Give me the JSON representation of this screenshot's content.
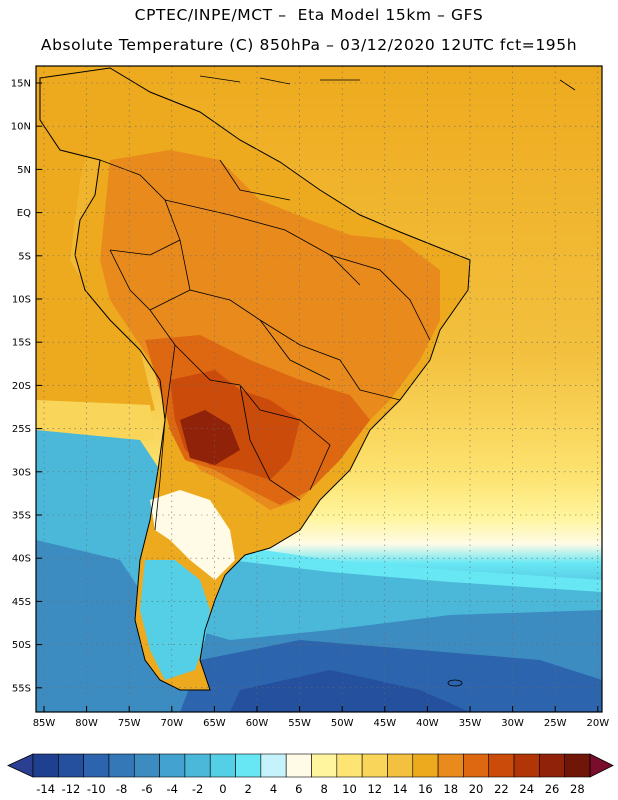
{
  "title": {
    "line1": "CPTEC/INPE/MCT –  Eta Model 15km – GFS",
    "line2": "Absolute Temperature (C) 850hPa – 03/12/2020 12UTC fct=195h"
  },
  "map": {
    "lat_labels": [
      "15N",
      "10N",
      "5N",
      "EQ",
      "5S",
      "10S",
      "15S",
      "20S",
      "25S",
      "30S",
      "35S",
      "40S",
      "45S",
      "50S",
      "55S"
    ],
    "lon_labels": [
      "85W",
      "80W",
      "75W",
      "70W",
      "65W",
      "60W",
      "55W",
      "50W",
      "45W",
      "40W",
      "35W",
      "30W",
      "25W",
      "20W"
    ]
  },
  "colorbar": {
    "ticks": [
      "-14",
      "-12",
      "-10",
      "-8",
      "-6",
      "-4",
      "-2",
      "0",
      "2",
      "4",
      "6",
      "8",
      "10",
      "12",
      "14",
      "16",
      "18",
      "20",
      "22",
      "24",
      "26",
      "28"
    ],
    "colors": [
      "#1f3f8f",
      "#24509e",
      "#2d64ae",
      "#3478b8",
      "#3c8cc2",
      "#43a2cf",
      "#4bb8d9",
      "#55cfe6",
      "#67e7f4",
      "#c6f3fb",
      "#fffbe6",
      "#fff59e",
      "#fde473",
      "#f9d55a",
      "#f3c13f",
      "#eeaa1e",
      "#e98a1c",
      "#de6711",
      "#cb4b0a",
      "#b13507",
      "#8f2208",
      "#6f1608"
    ],
    "low_color": "#2b3f92",
    "high_color": "#7a0d2b"
  }
}
